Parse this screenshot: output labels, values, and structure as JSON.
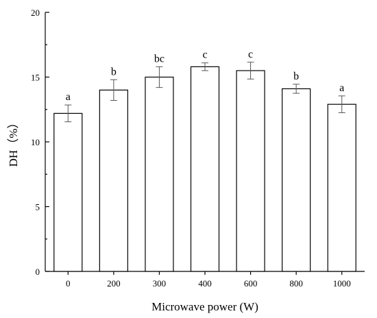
{
  "chart_data": {
    "type": "bar",
    "title": "",
    "xlabel": "Microwave power (W)",
    "ylabel": "DH（%）",
    "categories": [
      "0",
      "200",
      "300",
      "400",
      "600",
      "800",
      "1000"
    ],
    "values": [
      12.2,
      14.0,
      15.0,
      15.8,
      15.5,
      14.1,
      12.9
    ],
    "errors": [
      0.65,
      0.8,
      0.8,
      0.3,
      0.65,
      0.35,
      0.65
    ],
    "significance": [
      "a",
      "b",
      "bc",
      "c",
      "c",
      "b",
      "a"
    ],
    "ylim": [
      0,
      20
    ],
    "yticks": [
      "0",
      "5",
      "10",
      "15",
      "20"
    ],
    "grid": false,
    "legend": "none",
    "bar_fill": "#ffffff",
    "bar_stroke": "#000000",
    "error_color": "#555555"
  }
}
